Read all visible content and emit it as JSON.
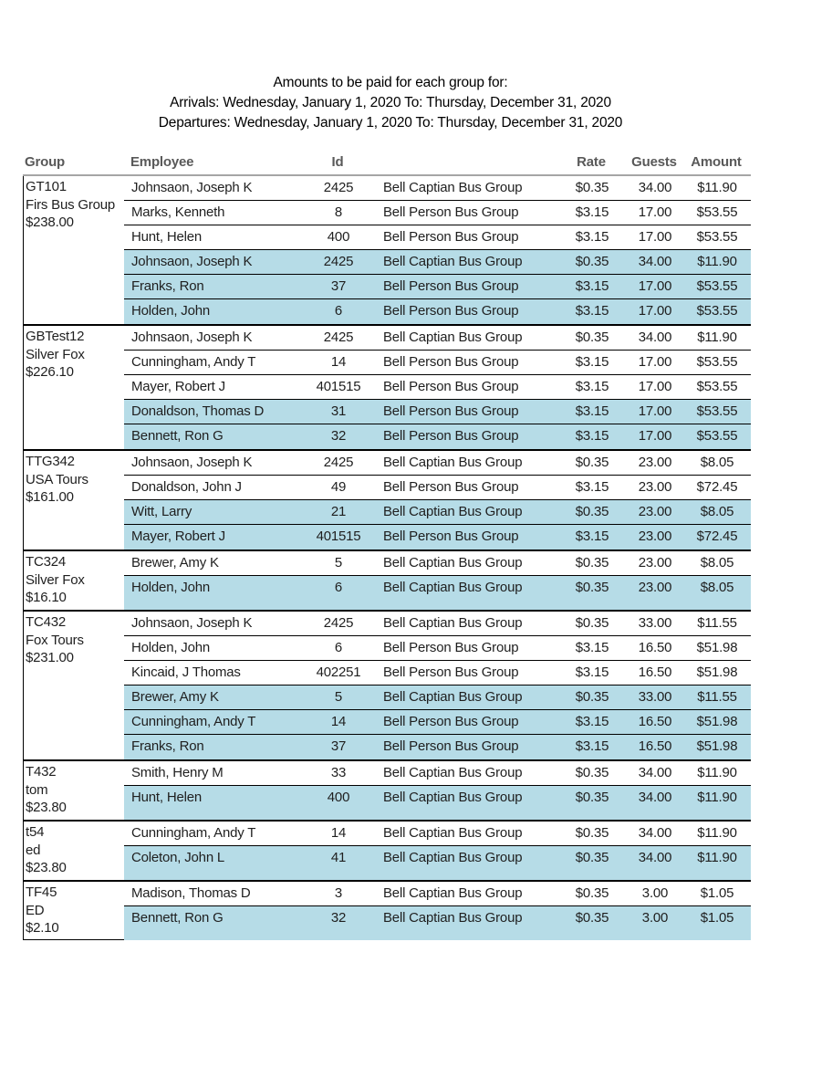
{
  "title": {
    "line1": "Amounts to be paid for each group for:",
    "line2": "Arrivals: Wednesday, January 1, 2020 To: Thursday, December 31, 2020",
    "line3": "Departures: Wednesday, January 1, 2020 To: Thursday, December 31, 2020"
  },
  "table": {
    "highlight_color": "#b6dce7",
    "headers": {
      "group": "Group",
      "employee": "Employee",
      "id": "Id",
      "busgroup": "",
      "rate": "Rate",
      "guests": "Guests",
      "amount": "Amount"
    },
    "groups": [
      {
        "code": "GT101",
        "name": "Firs Bus Group",
        "total": "$238.00",
        "rows": [
          {
            "employee": "Johnsaon, Joseph K",
            "id": "2425",
            "bus_group": "Bell Captian Bus Group",
            "rate": "$0.35",
            "guests": "34.00",
            "amount": "$11.90",
            "highlighted": false
          },
          {
            "employee": "Marks, Kenneth",
            "id": "8",
            "bus_group": "Bell Person Bus Group",
            "rate": "$3.15",
            "guests": "17.00",
            "amount": "$53.55",
            "highlighted": false
          },
          {
            "employee": "Hunt, Helen",
            "id": "400",
            "bus_group": "Bell Person Bus Group",
            "rate": "$3.15",
            "guests": "17.00",
            "amount": "$53.55",
            "highlighted": false
          },
          {
            "employee": "Johnsaon, Joseph K",
            "id": "2425",
            "bus_group": "Bell Captian Bus Group",
            "rate": "$0.35",
            "guests": "34.00",
            "amount": "$11.90",
            "highlighted": true
          },
          {
            "employee": "Franks, Ron",
            "id": "37",
            "bus_group": "Bell Person Bus Group",
            "rate": "$3.15",
            "guests": "17.00",
            "amount": "$53.55",
            "highlighted": true
          },
          {
            "employee": "Holden, John",
            "id": "6",
            "bus_group": "Bell Person Bus Group",
            "rate": "$3.15",
            "guests": "17.00",
            "amount": "$53.55",
            "highlighted": true
          }
        ]
      },
      {
        "code": "GBTest12",
        "name": "Silver Fox",
        "total": "$226.10",
        "rows": [
          {
            "employee": "Johnsaon, Joseph K",
            "id": "2425",
            "bus_group": "Bell Captian Bus Group",
            "rate": "$0.35",
            "guests": "34.00",
            "amount": "$11.90",
            "highlighted": false
          },
          {
            "employee": "Cunningham, Andy T",
            "id": "14",
            "bus_group": "Bell Person Bus Group",
            "rate": "$3.15",
            "guests": "17.00",
            "amount": "$53.55",
            "highlighted": false
          },
          {
            "employee": "Mayer, Robert J",
            "id": "401515",
            "bus_group": "Bell Person Bus Group",
            "rate": "$3.15",
            "guests": "17.00",
            "amount": "$53.55",
            "highlighted": false
          },
          {
            "employee": "Donaldson, Thomas D",
            "id": "31",
            "bus_group": "Bell Person Bus Group",
            "rate": "$3.15",
            "guests": "17.00",
            "amount": "$53.55",
            "highlighted": true
          },
          {
            "employee": "Bennett, Ron G",
            "id": "32",
            "bus_group": "Bell Person Bus Group",
            "rate": "$3.15",
            "guests": "17.00",
            "amount": "$53.55",
            "highlighted": true
          }
        ]
      },
      {
        "code": "TTG342",
        "name": "USA Tours",
        "total": "$161.00",
        "rows": [
          {
            "employee": "Johnsaon, Joseph K",
            "id": "2425",
            "bus_group": "Bell Captian Bus Group",
            "rate": "$0.35",
            "guests": "23.00",
            "amount": "$8.05",
            "highlighted": false
          },
          {
            "employee": "Donaldson, John J",
            "id": "49",
            "bus_group": "Bell Person Bus Group",
            "rate": "$3.15",
            "guests": "23.00",
            "amount": "$72.45",
            "highlighted": false
          },
          {
            "employee": "Witt, Larry",
            "id": "21",
            "bus_group": "Bell Captian Bus Group",
            "rate": "$0.35",
            "guests": "23.00",
            "amount": "$8.05",
            "highlighted": true
          },
          {
            "employee": "Mayer, Robert J",
            "id": "401515",
            "bus_group": "Bell Person Bus Group",
            "rate": "$3.15",
            "guests": "23.00",
            "amount": "$72.45",
            "highlighted": true
          }
        ]
      },
      {
        "code": "TC324",
        "name": "Silver Fox",
        "total": "$16.10",
        "rows": [
          {
            "employee": "Brewer, Amy K",
            "id": "5",
            "bus_group": "Bell Captian Bus Group",
            "rate": "$0.35",
            "guests": "23.00",
            "amount": "$8.05",
            "highlighted": false
          },
          {
            "employee": "Holden, John",
            "id": "6",
            "bus_group": "Bell Captian Bus Group",
            "rate": "$0.35",
            "guests": "23.00",
            "amount": "$8.05",
            "highlighted": true
          }
        ]
      },
      {
        "code": "TC432",
        "name": "Fox Tours",
        "total": "$231.00",
        "rows": [
          {
            "employee": "Johnsaon, Joseph K",
            "id": "2425",
            "bus_group": "Bell Captian Bus Group",
            "rate": "$0.35",
            "guests": "33.00",
            "amount": "$11.55",
            "highlighted": false
          },
          {
            "employee": "Holden, John",
            "id": "6",
            "bus_group": "Bell Person Bus Group",
            "rate": "$3.15",
            "guests": "16.50",
            "amount": "$51.98",
            "highlighted": false
          },
          {
            "employee": "Kincaid, J Thomas",
            "id": "402251",
            "bus_group": "Bell Person Bus Group",
            "rate": "$3.15",
            "guests": "16.50",
            "amount": "$51.98",
            "highlighted": false
          },
          {
            "employee": "Brewer, Amy K",
            "id": "5",
            "bus_group": "Bell Captian Bus Group",
            "rate": "$0.35",
            "guests": "33.00",
            "amount": "$11.55",
            "highlighted": true
          },
          {
            "employee": "Cunningham, Andy T",
            "id": "14",
            "bus_group": "Bell Person Bus Group",
            "rate": "$3.15",
            "guests": "16.50",
            "amount": "$51.98",
            "highlighted": true
          },
          {
            "employee": "Franks, Ron",
            "id": "37",
            "bus_group": "Bell Person Bus Group",
            "rate": "$3.15",
            "guests": "16.50",
            "amount": "$51.98",
            "highlighted": true
          }
        ]
      },
      {
        "code": "T432",
        "name": "tom",
        "total": "$23.80",
        "rows": [
          {
            "employee": "Smith, Henry M",
            "id": "33",
            "bus_group": "Bell Captian Bus Group",
            "rate": "$0.35",
            "guests": "34.00",
            "amount": "$11.90",
            "highlighted": false
          },
          {
            "employee": "Hunt, Helen",
            "id": "400",
            "bus_group": "Bell Captian Bus Group",
            "rate": "$0.35",
            "guests": "34.00",
            "amount": "$11.90",
            "highlighted": true
          }
        ]
      },
      {
        "code": "t54",
        "name": "ed",
        "total": "$23.80",
        "rows": [
          {
            "employee": "Cunningham, Andy T",
            "id": "14",
            "bus_group": "Bell Captian Bus Group",
            "rate": "$0.35",
            "guests": "34.00",
            "amount": "$11.90",
            "highlighted": false
          },
          {
            "employee": "Coleton, John L",
            "id": "41",
            "bus_group": "Bell Captian Bus Group",
            "rate": "$0.35",
            "guests": "34.00",
            "amount": "$11.90",
            "highlighted": true
          }
        ]
      },
      {
        "code": "TF45",
        "name": "ED",
        "total": "$2.10",
        "rows": [
          {
            "employee": "Madison, Thomas D",
            "id": "3",
            "bus_group": "Bell Captian Bus Group",
            "rate": "$0.35",
            "guests": "3.00",
            "amount": "$1.05",
            "highlighted": false
          },
          {
            "employee": "Bennett, Ron G",
            "id": "32",
            "bus_group": "Bell Captian Bus Group",
            "rate": "$0.35",
            "guests": "3.00",
            "amount": "$1.05",
            "highlighted": true
          }
        ]
      }
    ]
  }
}
